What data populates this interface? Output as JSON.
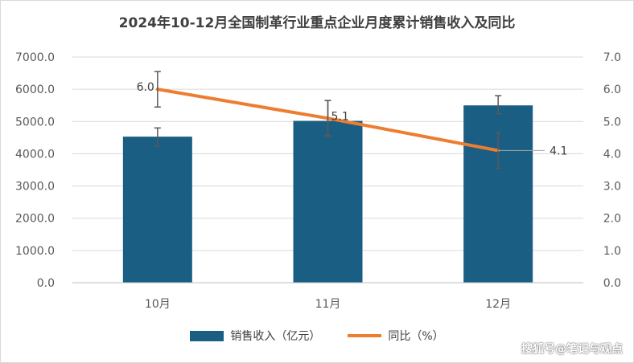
{
  "chart_data": {
    "type": "bar",
    "title": "2024年10-12月全国制革行业重点企业月度累计销售收入及同比",
    "categories": [
      "10月",
      "11月",
      "12月"
    ],
    "series": [
      {
        "name": "销售收入（亿元）",
        "type": "bar",
        "axis": "left",
        "values": [
          4530,
          5020,
          5500
        ],
        "error_low": [
          4240,
          4580,
          5240
        ],
        "error_high": [
          4800,
          5650,
          5800
        ]
      },
      {
        "name": "同比（%）",
        "type": "line",
        "axis": "right",
        "values": [
          6.0,
          5.1,
          4.1
        ],
        "data_labels": [
          "6.0",
          "5.1",
          "4.1"
        ],
        "error_low": [
          5.45,
          4.55,
          3.55
        ],
        "error_high": [
          6.55,
          5.65,
          4.65
        ]
      }
    ],
    "left_axis": {
      "ylim": [
        0,
        7000
      ],
      "ticks": [
        "0.0",
        "1000.0",
        "2000.0",
        "3000.0",
        "4000.0",
        "5000.0",
        "6000.0",
        "7000.0"
      ]
    },
    "right_axis": {
      "ylim": [
        0,
        7
      ],
      "ticks": [
        "0.0",
        "1.0",
        "2.0",
        "3.0",
        "4.0",
        "5.0",
        "6.0",
        "7.0"
      ]
    },
    "grid": true,
    "legend_position": "bottom",
    "colors": {
      "bar": "#1a5e83",
      "line": "#ed7d31",
      "grid": "#d9d9d9",
      "text": "#595959",
      "error": "#595959"
    }
  },
  "watermark": "搜狐号@笔记与观点"
}
